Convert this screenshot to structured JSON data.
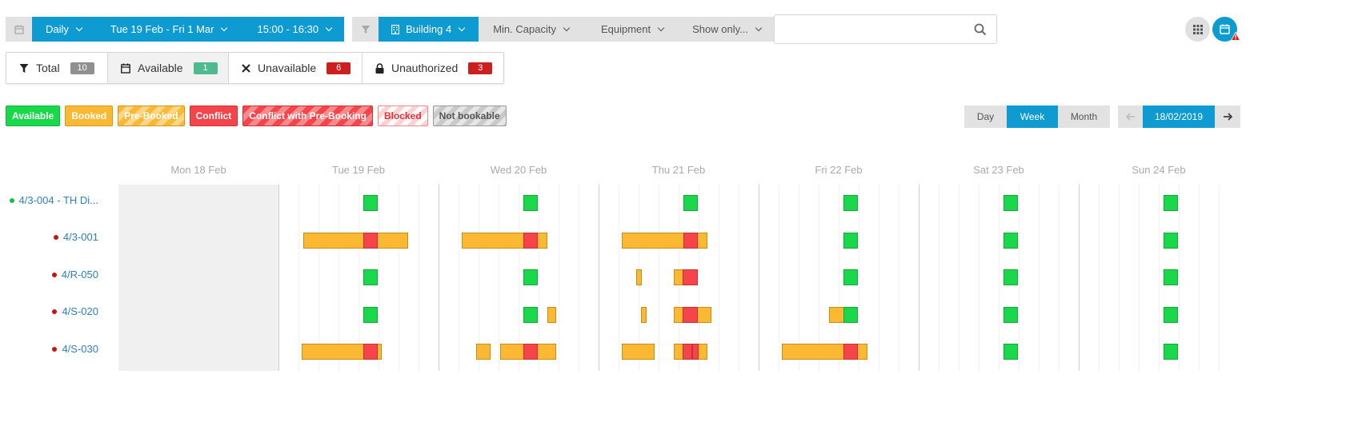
{
  "colors": {
    "brand_blue": "#0e9bd1",
    "available": "#19d94a",
    "booked": "#fbb832",
    "conflict": "#f5454a",
    "unauthorized_red": "#cc1f1f",
    "available_count_green": "#4dbb8f",
    "total_count_grey": "#909090"
  },
  "toolbar": {
    "calendar_icon": "calendar-icon",
    "period": "Daily",
    "date_range": "Tue 19 Feb - Fri 1 Mar",
    "time_range": "15:00 - 16:30",
    "filter_icon": "filter-icon",
    "building": "Building 4",
    "min_capacity": "Min. Capacity",
    "equipment": "Equipment",
    "show_only": "Show only..."
  },
  "search": {
    "placeholder": "",
    "icon": "search-icon"
  },
  "stats": [
    {
      "icon": "funnel-icon",
      "label": "Total",
      "count": "10",
      "count_color": "#909090"
    },
    {
      "icon": "calendar-icon",
      "label": "Available",
      "count": "1",
      "count_color": "#4dbb8f"
    },
    {
      "icon": "close-icon",
      "label": "Unavailable",
      "count": "6",
      "count_color": "#cc1f1f"
    },
    {
      "icon": "lock-icon",
      "label": "Unauthorized",
      "count": "3",
      "count_color": "#cc1f1f"
    }
  ],
  "legend": [
    "Available",
    "Booked",
    "Pre-Booked",
    "Conflict",
    "Conflict with Pre-Booking",
    "Blocked",
    "Not bookable"
  ],
  "view_switch": {
    "day": "Day",
    "week": "Week",
    "month": "Month",
    "active": "Week"
  },
  "date_nav": {
    "date": "18/02/2019"
  },
  "days": [
    "Mon 18 Feb",
    "Tue 19 Feb",
    "Wed 20 Feb",
    "Thu 21 Feb",
    "Fri 22 Feb",
    "Sat 23 Feb",
    "Sun 24 Feb"
  ],
  "rooms": [
    {
      "label": "4/3-004 - TH Di...",
      "status_color": "#19c040"
    },
    {
      "label": "4/3-001",
      "status_color": "#cc1111"
    },
    {
      "label": "4/R-050",
      "status_color": "#cc1111"
    },
    {
      "label": "4/S-020",
      "status_color": "#cc1111"
    },
    {
      "label": "4/S-030",
      "status_color": "#cc1111"
    }
  ]
}
